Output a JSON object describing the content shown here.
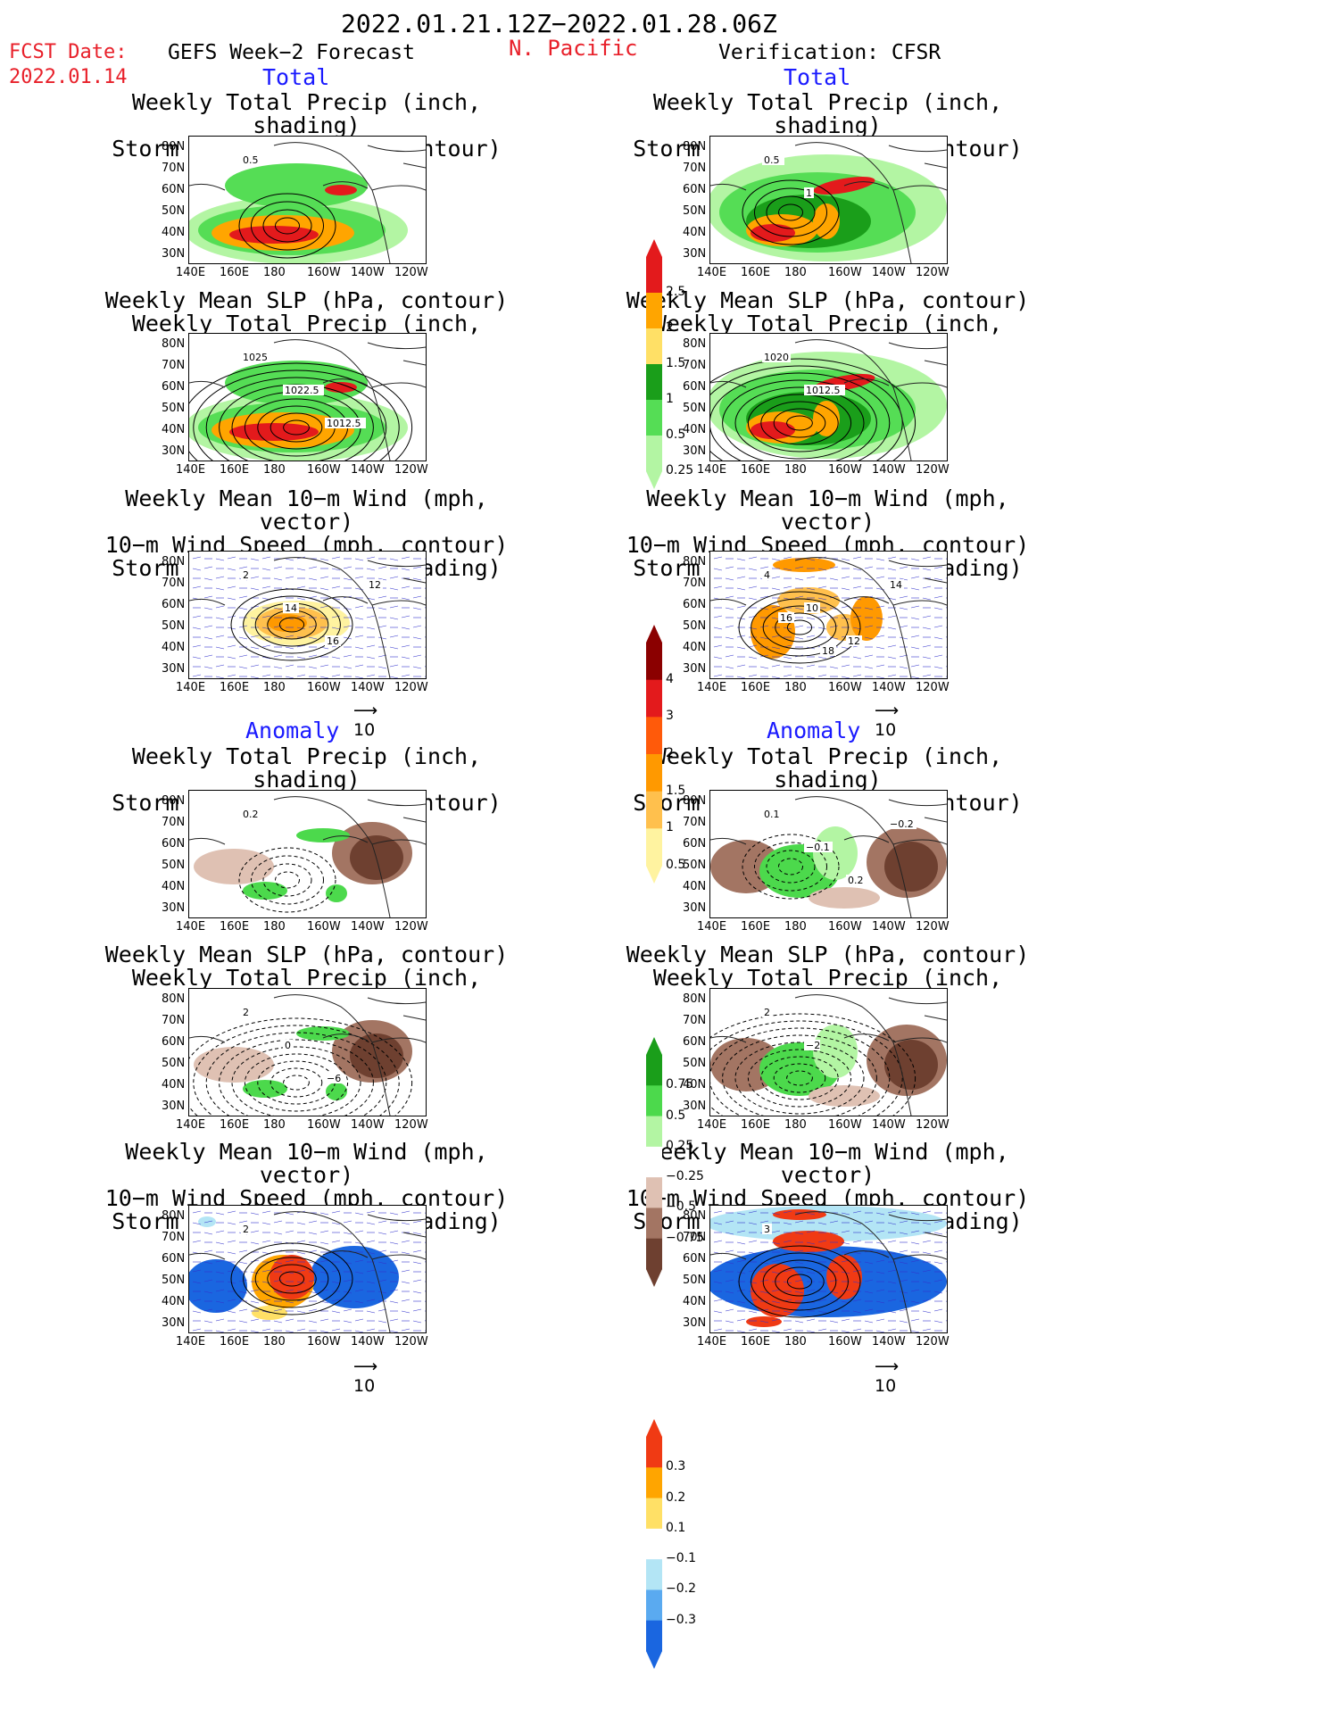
{
  "header": {
    "period": "2022.01.21.12Z−2022.01.28.06Z",
    "fcst_label": "FCST Date:",
    "fcst_date": "2022.01.14",
    "left_title": "GEFS Week−2 Forecast",
    "region": "N. Pacific",
    "right_title": "Verification: CFSR"
  },
  "sections": {
    "total": "Total",
    "anomaly": "Anomaly"
  },
  "panel_titles": {
    "precip_track": [
      "Weekly Total Precip (inch, shading)",
      "Storm Track Density (contour)"
    ],
    "slp_precip": [
      "Weekly Mean SLP (hPa, contour)",
      "Weekly Total Precip (inch, shading)"
    ],
    "wind_track": [
      "Weekly Mean 10−m Wind (mph, vector)",
      "10−m Wind Speed (mph, contour)",
      "Storm Track Density (shading)"
    ]
  },
  "axes": {
    "lat_ticks": [
      "80N",
      "70N",
      "60N",
      "50N",
      "40N",
      "30N"
    ],
    "lon_ticks": [
      "140E",
      "160E",
      "180",
      "160W",
      "140W",
      "120W"
    ]
  },
  "vector_ref": "10",
  "colorbars": {
    "precip_total": {
      "labels": [
        "2.5",
        "2",
        "1.5",
        "1",
        "0.5",
        "0.25"
      ],
      "colors": [
        "#e31a1c",
        "#ffa500",
        "#ffe066",
        "#1a9e1a",
        "#55dd55",
        "#b3f5a3"
      ]
    },
    "track_total": {
      "labels": [
        "4",
        "3",
        "2",
        "1.5",
        "1",
        "0.5"
      ],
      "colors": [
        "#8b0000",
        "#e31a1c",
        "#ff5a0a",
        "#ff9900",
        "#ffc04d",
        "#fff3a0"
      ]
    },
    "precip_anom": {
      "labels": [
        "0.75",
        "0.5",
        "0.25",
        "−0.25",
        "−0.5",
        "−0.75"
      ],
      "colors": [
        "#1a9e1a",
        "#4cd94c",
        "#b3f5a3",
        "#ffffff",
        "#dfc1b3",
        "#a37563",
        "#6e4030"
      ]
    },
    "track_anom": {
      "labels": [
        "0.3",
        "0.2",
        "0.1",
        "−0.1",
        "−0.2",
        "−0.3"
      ],
      "colors": [
        "#f03a14",
        "#ffa500",
        "#ffe066",
        "#ffffff",
        "#b3e5f5",
        "#5aaaf0",
        "#1a66e0"
      ]
    }
  },
  "contour_labels": {
    "gefs_precip_total": [
      "0.5"
    ],
    "cfsr_precip_total": [
      "0.5",
      "1"
    ],
    "gefs_slp_total": [
      "1025",
      "1022.5",
      "1012.5"
    ],
    "cfsr_slp_total": [
      "1020",
      "1012.5"
    ],
    "gefs_wind_total": [
      "2",
      "14",
      "16",
      "12"
    ],
    "cfsr_wind_total": [
      "4",
      "10",
      "12",
      "14",
      "16",
      "18"
    ],
    "gefs_precip_anom": [
      "0.2"
    ],
    "cfsr_precip_anom": [
      "0.1",
      "−0.1",
      "0.2",
      "−0.2"
    ],
    "gefs_slp_anom": [
      "2",
      "0",
      "−6"
    ],
    "cfsr_slp_anom": [
      "2",
      "−2"
    ],
    "gefs_wind_anom": [
      "2"
    ],
    "cfsr_wind_anom": [
      "3"
    ]
  }
}
